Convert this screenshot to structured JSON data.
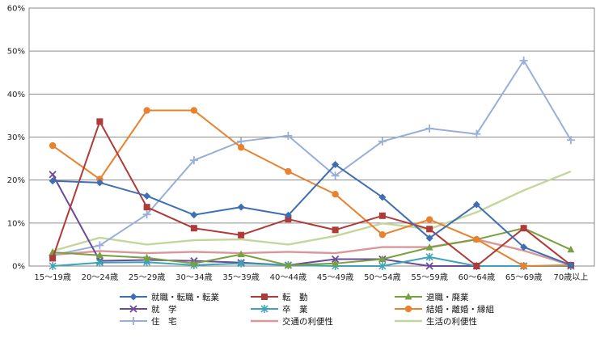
{
  "chart_data": {
    "type": "line",
    "categories": [
      "15～19歳",
      "20～24歳",
      "25～29歳",
      "30～34歳",
      "35～39歳",
      "40～44歳",
      "45～49歳",
      "50～54歳",
      "55～59歳",
      "60～64歳",
      "65～69歳",
      "70歳以上"
    ],
    "y_ticks": [
      "0%",
      "10%",
      "20%",
      "30%",
      "40%",
      "50%",
      "60%"
    ],
    "ylim": [
      0,
      60
    ],
    "grid": true,
    "legend_position": "bottom",
    "series": [
      {
        "name": "就職・転職・転業",
        "color": "#3f6fb3",
        "marker": "diamond",
        "values": [
          19.8,
          19.4,
          16.3,
          11.9,
          13.7,
          11.8,
          23.6,
          16.0,
          6.5,
          14.3,
          4.4,
          0.2
        ]
      },
      {
        "name": "転　勤",
        "color": "#b03a38",
        "marker": "square",
        "values": [
          1.8,
          33.6,
          13.7,
          8.8,
          7.2,
          10.9,
          8.4,
          11.7,
          8.6,
          0.0,
          8.8,
          0.2
        ]
      },
      {
        "name": "退職・廃業",
        "color": "#79a040",
        "marker": "triangle",
        "values": [
          3.2,
          2.5,
          1.9,
          0.6,
          2.7,
          0.2,
          0.6,
          1.6,
          4.3,
          6.2,
          8.8,
          3.8
        ]
      },
      {
        "name": "就　学",
        "color": "#6a4a9a",
        "marker": "x",
        "values": [
          21.3,
          1.2,
          1.4,
          1.2,
          0.8,
          0.2,
          1.6,
          1.6,
          0.0,
          0.0,
          0.0,
          0.0
        ]
      },
      {
        "name": "卒　業",
        "color": "#3da4b8",
        "marker": "star",
        "values": [
          0.0,
          0.8,
          0.9,
          0.2,
          0.6,
          0.2,
          0.0,
          0.0,
          2.1,
          0.0,
          0.0,
          0.0
        ]
      },
      {
        "name": "結婚・離婚・縁組",
        "color": "#e8822e",
        "marker": "circle",
        "values": [
          28.0,
          20.2,
          36.2,
          36.2,
          27.6,
          22.0,
          16.7,
          7.3,
          10.8,
          6.2,
          0.0,
          0.2
        ]
      },
      {
        "name": "住　宅",
        "color": "#98afd8",
        "marker": "plus",
        "values": [
          2.5,
          4.8,
          12.0,
          24.6,
          29.0,
          30.3,
          21.0,
          29.0,
          32.0,
          30.7,
          47.8,
          29.3
        ]
      },
      {
        "name": "交通の利便性",
        "color": "#d99797",
        "marker": "none",
        "values": [
          2.6,
          3.5,
          3.0,
          3.3,
          3.0,
          3.3,
          3.0,
          4.4,
          4.4,
          6.2,
          3.6,
          0.2
        ]
      },
      {
        "name": "生活の利便性",
        "color": "#c3d69b",
        "marker": "none",
        "values": [
          3.5,
          6.6,
          5.0,
          6.0,
          6.2,
          5.0,
          7.0,
          9.9,
          8.6,
          12.5,
          17.6,
          22.0
        ]
      }
    ]
  }
}
